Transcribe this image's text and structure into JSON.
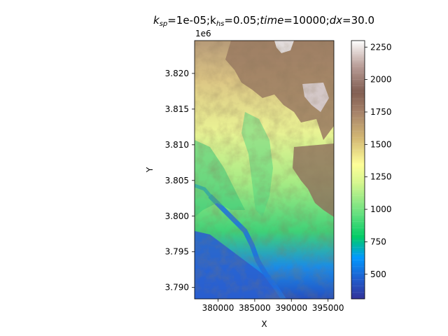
{
  "figure": {
    "title_prefix": "k",
    "title_sub1": "sp",
    "title_part2": "=1e-05;k",
    "title_sub2": "hs",
    "title_part3": "=0.05;",
    "title_time_label": "time",
    "title_part4": "=10000;",
    "title_dx_label": "dx",
    "title_part5": "=30.0"
  },
  "map": {
    "xlabel": "X",
    "ylabel": "Y",
    "y_offset_label": "1e6",
    "x_range": [
      376800,
      395800
    ],
    "y_range": [
      3788400,
      3824600
    ],
    "x_ticks": [
      {
        "value": 380000,
        "label": "380000"
      },
      {
        "value": 385000,
        "label": "385000"
      },
      {
        "value": 390000,
        "label": "390000"
      },
      {
        "value": 395000,
        "label": "395000"
      }
    ],
    "y_ticks": [
      {
        "value": 3790000,
        "label": "3.790"
      },
      {
        "value": 3795000,
        "label": "3.795"
      },
      {
        "value": 3800000,
        "label": "3.800"
      },
      {
        "value": 3805000,
        "label": "3.805"
      },
      {
        "value": 3810000,
        "label": "3.810"
      },
      {
        "value": 3815000,
        "label": "3.815"
      },
      {
        "value": 3820000,
        "label": "3.820"
      }
    ],
    "colormap": "terrain",
    "field": "topographic elevation"
  },
  "colorbar": {
    "range": [
      310,
      2300
    ],
    "ticks": [
      {
        "value": 500,
        "label": "500"
      },
      {
        "value": 750,
        "label": "750"
      },
      {
        "value": 1000,
        "label": "1000"
      },
      {
        "value": 1250,
        "label": "1250"
      },
      {
        "value": 1500,
        "label": "1500"
      },
      {
        "value": 1750,
        "label": "1750"
      },
      {
        "value": 2000,
        "label": "2000"
      },
      {
        "value": 2250,
        "label": "2250"
      }
    ],
    "levels": 40
  }
}
